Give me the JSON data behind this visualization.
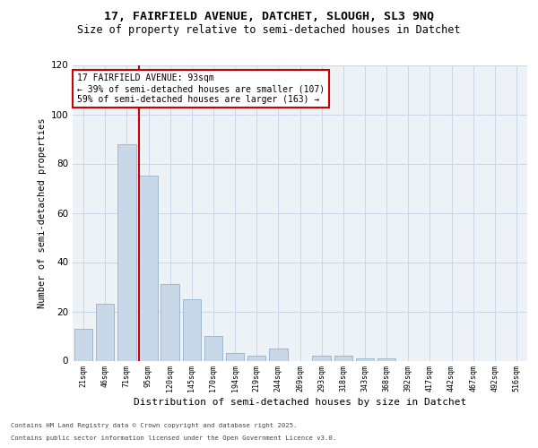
{
  "title_line1": "17, FAIRFIELD AVENUE, DATCHET, SLOUGH, SL3 9NQ",
  "title_line2": "Size of property relative to semi-detached houses in Datchet",
  "xlabel": "Distribution of semi-detached houses by size in Datchet",
  "ylabel": "Number of semi-detached properties",
  "bar_labels": [
    "21sqm",
    "46sqm",
    "71sqm",
    "95sqm",
    "120sqm",
    "145sqm",
    "170sqm",
    "194sqm",
    "219sqm",
    "244sqm",
    "269sqm",
    "293sqm",
    "318sqm",
    "343sqm",
    "368sqm",
    "392sqm",
    "417sqm",
    "442sqm",
    "467sqm",
    "492sqm",
    "516sqm"
  ],
  "bar_values": [
    13,
    23,
    88,
    75,
    31,
    25,
    10,
    3,
    2,
    5,
    0,
    2,
    2,
    1,
    1,
    0,
    0,
    0,
    0,
    0,
    0
  ],
  "bar_color": "#c8d8e8",
  "bar_edgecolor": "#a0b8cc",
  "vline_color": "#cc0000",
  "annotation_title": "17 FAIRFIELD AVENUE: 93sqm",
  "annotation_line1": "← 39% of semi-detached houses are smaller (107)",
  "annotation_line2": "59% of semi-detached houses are larger (163) →",
  "annotation_box_color": "#cc0000",
  "annotation_box_facecolor": "#ffffff",
  "ylim": [
    0,
    120
  ],
  "yticks": [
    0,
    20,
    40,
    60,
    80,
    100,
    120
  ],
  "footer_line1": "Contains HM Land Registry data © Crown copyright and database right 2025.",
  "footer_line2": "Contains public sector information licensed under the Open Government Licence v3.0.",
  "grid_color": "#c8d8e8",
  "background_color": "#edf2f7"
}
